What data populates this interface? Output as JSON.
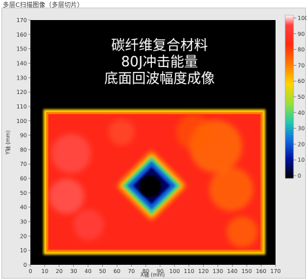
{
  "window": {
    "title": "多层C扫描图像（多层切片）"
  },
  "overlay": {
    "line1": "碳纤维复合材料",
    "line2": "80J冲击能量",
    "line3": "底面回波幅度成像"
  },
  "chart_data": {
    "type": "heatmap",
    "xlabel": "X轴 (mm)",
    "ylabel": "Y轴 (mm)",
    "xlim": [
      0,
      170
    ],
    "ylim": [
      0,
      170
    ],
    "x_ticks": [
      "0",
      "10",
      "20",
      "30",
      "40",
      "50",
      "60",
      "70",
      "80",
      "90",
      "100",
      "110",
      "120",
      "130",
      "140",
      "150",
      "160",
      "170"
    ],
    "y_ticks": [
      "0",
      "10",
      "20",
      "30",
      "40",
      "50",
      "60",
      "70",
      "80",
      "90",
      "100",
      "110",
      "120",
      "130",
      "140",
      "150",
      "160",
      "170"
    ],
    "colorbar": {
      "range": [
        0,
        100
      ],
      "ticks": [
        "100",
        "90",
        "80",
        "70",
        "60",
        "50",
        "40",
        "30",
        "20",
        "10",
        "0"
      ],
      "colors": [
        "#ffffff",
        "#ff2020",
        "#ff8000",
        "#ffe000",
        "#a0e040",
        "#20c8a0",
        "#1060e0",
        "#0000a0",
        "#000000"
      ]
    },
    "specimen": {
      "x_range": [
        10,
        162
      ],
      "y_range": [
        8,
        107
      ],
      "amplitude_level": "high (red, ~85-95)"
    },
    "damage_zone": {
      "center": [
        84,
        55
      ],
      "half_width_mm": 23,
      "shape": "diamond",
      "core_level": "low (black, ~0-10)"
    }
  }
}
